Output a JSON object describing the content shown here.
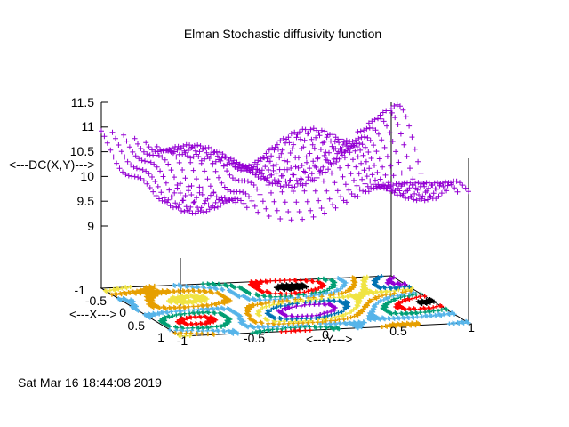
{
  "chart_data": {
    "type": "surface-3d",
    "title": "Elman Stochastic diffusivity function",
    "xlabel": "<---X--->",
    "ylabel": "<---Y--->",
    "zlabel": "<---DC(X,Y)--->",
    "x_ticks": [
      "-1",
      "-0.5",
      "0",
      "0.5",
      "1"
    ],
    "y_ticks": [
      "-1",
      "-0.5",
      "0",
      "0.5",
      "1"
    ],
    "z_ticks": [
      "9",
      "9.5",
      "10",
      "10.5",
      "11",
      "11.5"
    ],
    "xlim": [
      -1,
      1
    ],
    "ylim": [
      -1,
      1
    ],
    "zlim": [
      8.5,
      11.5
    ],
    "grid": false,
    "surface_color": "#9400d3",
    "contour_colors": [
      "#000000",
      "#ff0000",
      "#009e73",
      "#56b4e9",
      "#e69f00",
      "#f0e442",
      "#0072b2",
      "#9400d3"
    ]
  },
  "timestamp": "Sat Mar 16 18:44:08 2019"
}
